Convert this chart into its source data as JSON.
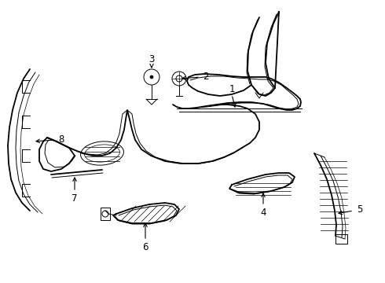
{
  "background_color": "#ffffff",
  "line_color": "#000000",
  "figsize": [
    4.9,
    3.6
  ],
  "dpi": 100,
  "lw_main": 1.3,
  "lw_thin": 0.7,
  "lw_detail": 0.5,
  "label_fontsize": 8.5
}
